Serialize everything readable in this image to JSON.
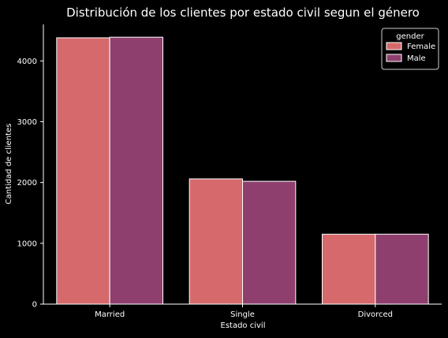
{
  "chart_data": {
    "type": "bar",
    "title": "Distribución de los clientes por estado civil segun el género",
    "xlabel": "Estado civil",
    "ylabel": "Cantidad de clientes",
    "categories": [
      "Married",
      "Single",
      "Divorced"
    ],
    "series": [
      {
        "name": "Female",
        "values": [
          4380,
          2060,
          1150
        ],
        "color": "#d5696b"
      },
      {
        "name": "Male",
        "values": [
          4390,
          2020,
          1150
        ],
        "color": "#8f3f6e"
      }
    ],
    "ylim": [
      0,
      4600
    ],
    "yticks": [
      0,
      1000,
      2000,
      3000,
      4000
    ],
    "grid": false,
    "legend": {
      "title": "gender",
      "position": "top-right"
    },
    "background": "#000000",
    "text_color": "#ffffff",
    "edge_color": "#ffffff"
  }
}
